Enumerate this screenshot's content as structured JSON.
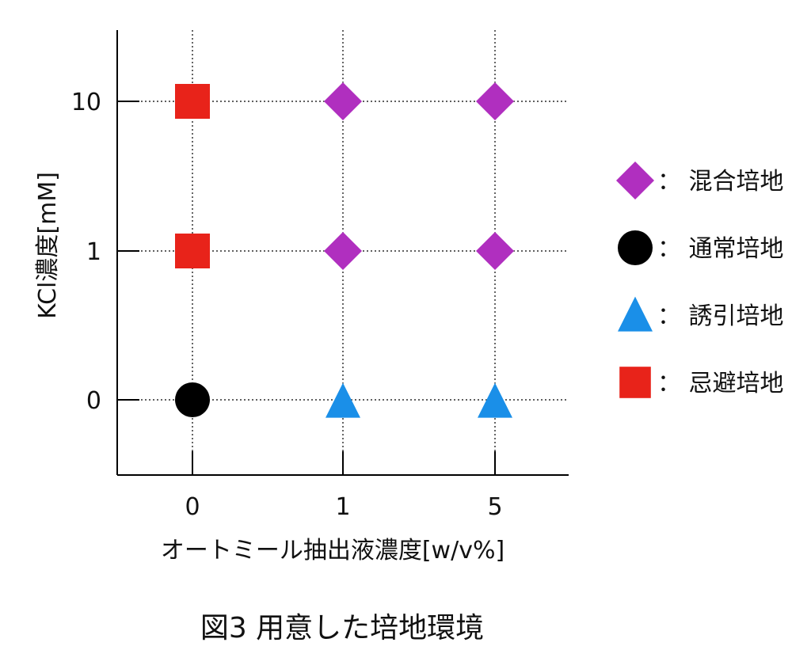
{
  "chart_data": {
    "type": "scatter",
    "title": "",
    "caption": "図3 用意した培地環境",
    "xlabel": "オートミール抽出液濃度[w/v%]",
    "ylabel": "KCl濃度[mM]",
    "x_categories": [
      "0",
      "1",
      "5"
    ],
    "y_categories": [
      "0",
      "1",
      "10"
    ],
    "grid": true,
    "legend_position": "right",
    "series": [
      {
        "name": "混合培地",
        "marker": "diamond",
        "color": "#b02fbf",
        "points": [
          {
            "x": "1",
            "y": "1"
          },
          {
            "x": "5",
            "y": "1"
          },
          {
            "x": "1",
            "y": "10"
          },
          {
            "x": "5",
            "y": "10"
          }
        ]
      },
      {
        "name": "通常培地",
        "marker": "circle",
        "color": "#000000",
        "points": [
          {
            "x": "0",
            "y": "0"
          }
        ]
      },
      {
        "name": "誘引培地",
        "marker": "triangle",
        "color": "#1a8fe8",
        "points": [
          {
            "x": "1",
            "y": "0"
          },
          {
            "x": "5",
            "y": "0"
          }
        ]
      },
      {
        "name": "忌避培地",
        "marker": "square",
        "color": "#e8231a",
        "points": [
          {
            "x": "0",
            "y": "1"
          },
          {
            "x": "0",
            "y": "10"
          }
        ]
      }
    ],
    "legend_separator": "："
  }
}
